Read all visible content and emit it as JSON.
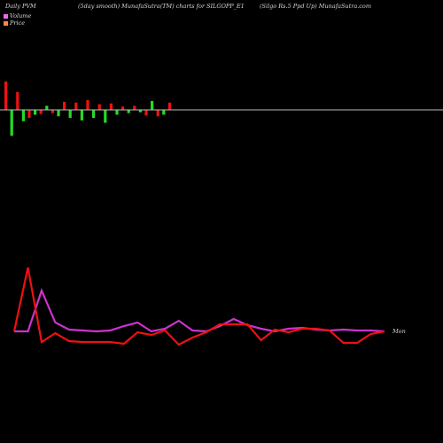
{
  "header": {
    "left": "Daily PVM",
    "middle": "(5day smooth) MunafaSutra(TM) charts for SILGOPP_E1",
    "right": "(Silgo  Rs.5 Ppd Up) MunafaSutra.com"
  },
  "legend": [
    {
      "label": "Volume",
      "color": "#ee66ee"
    },
    {
      "label": "Price",
      "color": "#ff8844"
    }
  ],
  "colors": {
    "background": "#000000",
    "bar_up": "#22dd22",
    "bar_down": "#ee1111",
    "zero_line": "#bbbbbb",
    "volume_line": "#cc33cc",
    "price_line": "#ee1111"
  },
  "chart_data": [
    {
      "type": "bar",
      "name": "pvm-histogram",
      "values": [
        35,
        -32,
        22,
        -14,
        -10,
        -6,
        -5,
        5,
        -4,
        -8,
        10,
        -10,
        9,
        -13,
        12,
        -10,
        7,
        -16,
        8,
        -6,
        4,
        -4,
        5,
        -3,
        -7,
        11,
        -8,
        -6,
        9
      ],
      "ylim": [
        -40,
        40
      ]
    },
    {
      "type": "line",
      "name": "price-volume-lines",
      "x": [
        0,
        1,
        2,
        3,
        4,
        5,
        6,
        7,
        8,
        9,
        10,
        11,
        12,
        13,
        14,
        15,
        16,
        17,
        18,
        19,
        20,
        21,
        22,
        23,
        24,
        25,
        26,
        27
      ],
      "series": [
        {
          "values": [
            0,
            0,
            46,
            10,
            2,
            1,
            0,
            1,
            6,
            10,
            0,
            3,
            12,
            1,
            0,
            6,
            14,
            7,
            3,
            0,
            3,
            4,
            2,
            1,
            2,
            1,
            1,
            0
          ]
        },
        {
          "values": [
            0,
            72,
            -12,
            -2,
            -11,
            -12,
            -12,
            -12,
            -14,
            -1,
            -4,
            1,
            -15,
            -7,
            -1,
            8,
            8,
            8,
            -10,
            2,
            -1,
            3,
            3,
            1,
            -13,
            -13,
            -3,
            0
          ]
        }
      ],
      "annotation": "Mon",
      "ylim": [
        -40,
        80
      ]
    }
  ]
}
